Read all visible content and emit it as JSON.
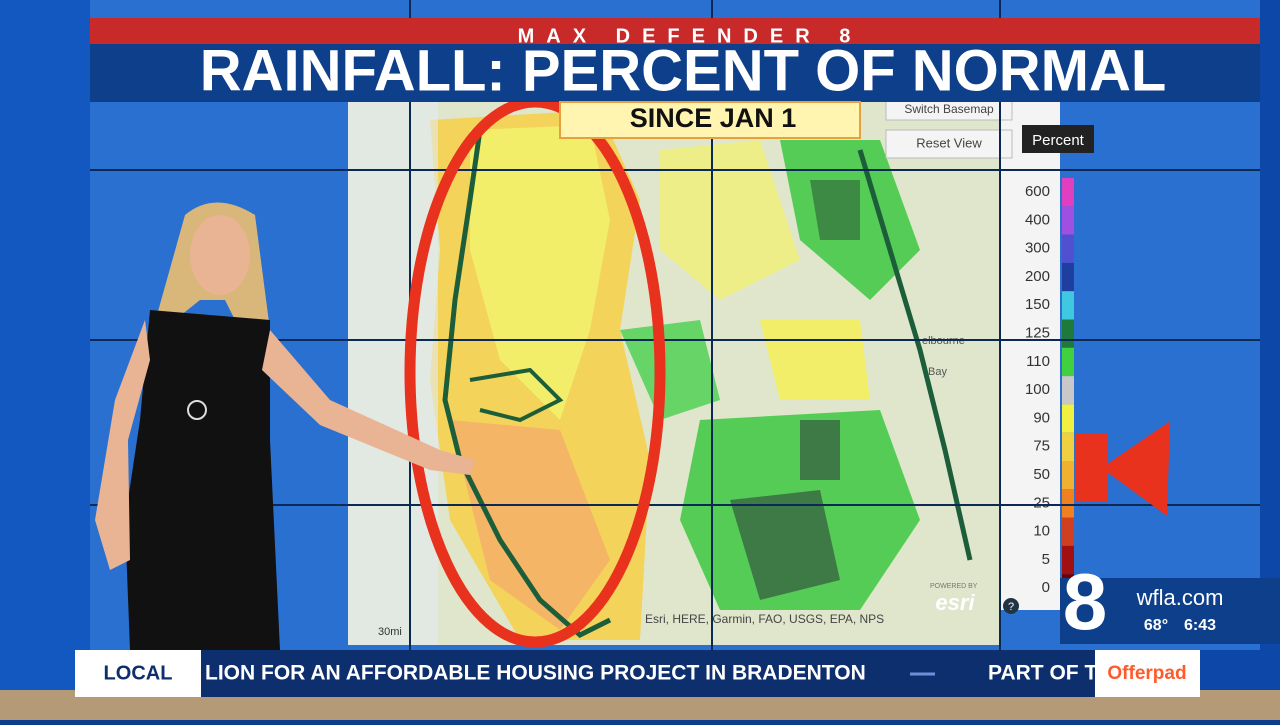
{
  "header": {
    "brand": "MAX DEFENDER 8",
    "title": "RAINFALL: PERCENT OF NORMAL",
    "subtitle": "SINCE JAN 1"
  },
  "map": {
    "switch_button": "Switch Basemap",
    "reset_button": "Reset View",
    "legend_title": "Percent",
    "legend": {
      "labels": [
        600,
        400,
        300,
        200,
        150,
        125,
        110,
        100,
        90,
        75,
        50,
        25,
        10,
        5,
        0
      ]
    },
    "places": [
      "elbourne",
      "Bay"
    ],
    "attribution": "Esri, HERE, Garmin, FAO, USGS, EPA, NPS",
    "powered": "POWERED BY",
    "esri": "esri",
    "scale": "30mi",
    "help": "?"
  },
  "ticker": {
    "section": "LOCAL",
    "headline": "LION FOR AN AFFORDABLE HOUSING PROJECT IN BRADENTON",
    "next": "PART OF T",
    "sponsor": "Offerpad"
  },
  "station": {
    "channel": "8",
    "site": "wfla.com",
    "temp": "68°",
    "time": "6:43"
  }
}
